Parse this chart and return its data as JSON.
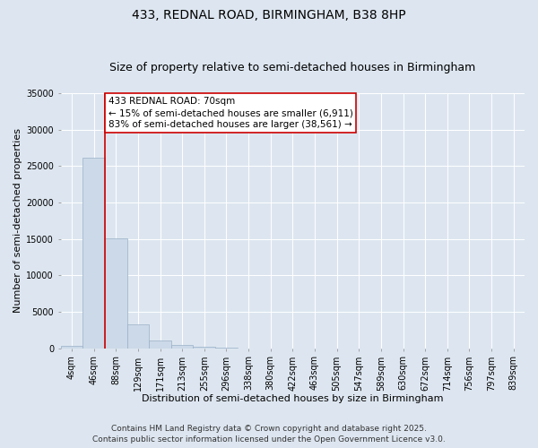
{
  "title_line1": "433, REDNAL ROAD, BIRMINGHAM, B38 8HP",
  "title_line2": "Size of property relative to semi-detached houses in Birmingham",
  "xlabel": "Distribution of semi-detached houses by size in Birmingham",
  "ylabel": "Number of semi-detached properties",
  "categories": [
    "4sqm",
    "46sqm",
    "88sqm",
    "129sqm",
    "171sqm",
    "213sqm",
    "255sqm",
    "296sqm",
    "338sqm",
    "380sqm",
    "422sqm",
    "463sqm",
    "505sqm",
    "547sqm",
    "589sqm",
    "630sqm",
    "672sqm",
    "714sqm",
    "756sqm",
    "797sqm",
    "839sqm"
  ],
  "values": [
    350,
    26100,
    15100,
    3300,
    1050,
    450,
    150,
    50,
    10,
    5,
    3,
    2,
    1,
    1,
    0,
    0,
    0,
    0,
    0,
    0,
    0
  ],
  "bar_color": "#ccd9e8",
  "bar_edgecolor": "#9ab0c8",
  "vline_x": 1.5,
  "vline_color": "#cc0000",
  "annotation_text": "433 REDNAL ROAD: 70sqm\n← 15% of semi-detached houses are smaller (6,911)\n83% of semi-detached houses are larger (38,561) →",
  "annotation_box_facecolor": "#ffffff",
  "annotation_box_edgecolor": "#cc0000",
  "ylim": [
    0,
    35000
  ],
  "yticks": [
    0,
    5000,
    10000,
    15000,
    20000,
    25000,
    30000,
    35000
  ],
  "ytick_labels": [
    "0",
    "5000",
    "10000",
    "15000",
    "20000",
    "25000",
    "30000",
    "35000"
  ],
  "background_color": "#dde6f0",
  "plot_background": "#dde6f0",
  "footer_line1": "Contains HM Land Registry data © Crown copyright and database right 2025.",
  "footer_line2": "Contains public sector information licensed under the Open Government Licence v3.0.",
  "title_fontsize": 10,
  "subtitle_fontsize": 9,
  "axis_label_fontsize": 8,
  "tick_fontsize": 7,
  "annotation_fontsize": 7.5,
  "footer_fontsize": 6.5
}
